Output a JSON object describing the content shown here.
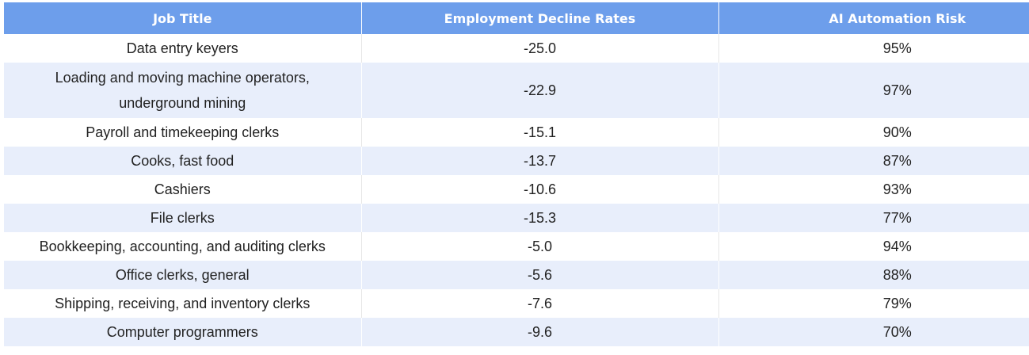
{
  "table": {
    "headers": [
      "Job Title",
      "Employment Decline Rates",
      "AI Automation Risk"
    ],
    "rows": [
      [
        "Data entry keyers",
        "-25.0",
        "95%"
      ],
      [
        "Loading and moving machine operators, underground mining",
        "-22.9",
        "97%"
      ],
      [
        "Payroll and timekeeping clerks",
        "-15.1",
        "90%"
      ],
      [
        "Cooks, fast food",
        "-13.7",
        "87%"
      ],
      [
        "Cashiers",
        "-10.6",
        "93%"
      ],
      [
        "File clerks",
        "-15.3",
        "77%"
      ],
      [
        "Bookkeeping, accounting, and auditing clerks",
        "-5.0",
        "94%"
      ],
      [
        "Office clerks, general",
        "-5.6",
        "88%"
      ],
      [
        "Shipping, receiving, and inventory clerks",
        "-7.6",
        "79%"
      ],
      [
        "Computer programmers",
        "-9.6",
        "70%"
      ]
    ]
  },
  "colors": {
    "header_bg": "#6d9eeb",
    "header_text": "#ffffff",
    "row_alt_bg": "#e8eefb"
  }
}
